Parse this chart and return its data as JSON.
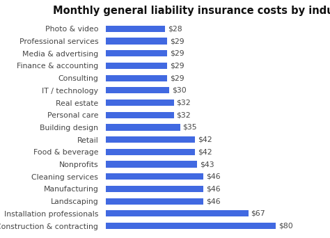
{
  "title": "Monthly general liability insurance costs by industry",
  "categories": [
    "Construction & contracting",
    "Installation professionals",
    "Landscaping",
    "Manufacturing",
    "Cleaning services",
    "Nonprofits",
    "Food & beverage",
    "Retail",
    "Building design",
    "Personal care",
    "Real estate",
    "IT / technology",
    "Consulting",
    "Finance & accounting",
    "Media & advertising",
    "Professional services",
    "Photo & video"
  ],
  "values": [
    80,
    67,
    46,
    46,
    46,
    43,
    42,
    42,
    35,
    32,
    32,
    30,
    29,
    29,
    29,
    29,
    28
  ],
  "bar_color": "#4169e1",
  "label_color": "#444444",
  "value_color": "#444444",
  "title_color": "#111111",
  "background_color": "#ffffff",
  "bar_height": 0.52,
  "title_fontsize": 10.5,
  "label_fontsize": 7.8,
  "value_fontsize": 7.8
}
